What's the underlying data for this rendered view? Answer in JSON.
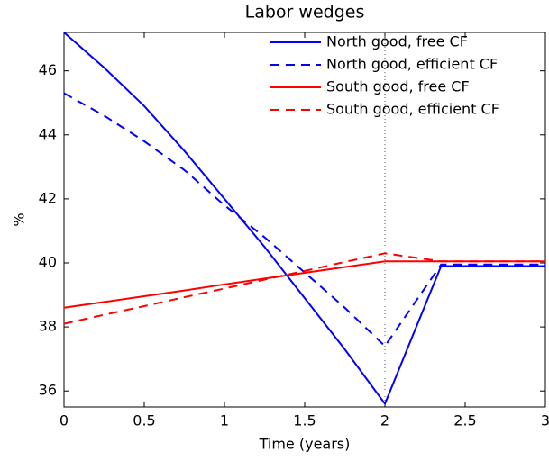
{
  "chart_data": {
    "type": "line",
    "title": "Labor wedges",
    "xlabel": "Time (years)",
    "ylabel": "%",
    "x": [
      0,
      0.25,
      0.5,
      0.75,
      1,
      1.25,
      1.5,
      1.75,
      2,
      2.35,
      2.5,
      3
    ],
    "series": [
      {
        "name": "North good, free CF",
        "color": "#0000ff",
        "dash": false,
        "values": [
          47.2,
          46.1,
          44.9,
          43.5,
          42.0,
          40.5,
          38.9,
          37.3,
          35.6,
          39.9,
          39.9,
          39.9
        ]
      },
      {
        "name": "North good, efficient CF",
        "color": "#0000ff",
        "dash": true,
        "values": [
          45.3,
          44.6,
          43.8,
          42.9,
          41.8,
          40.8,
          39.7,
          38.6,
          37.4,
          39.95,
          39.95,
          39.95
        ]
      },
      {
        "name": "South good, free CF",
        "color": "#ff0000",
        "dash": false,
        "values": [
          38.6,
          38.78,
          38.96,
          39.14,
          39.33,
          39.51,
          39.69,
          39.87,
          40.05,
          40.05,
          40.05,
          40.05
        ]
      },
      {
        "name": "South good, efficient CF",
        "color": "#ff0000",
        "dash": true,
        "values": [
          38.1,
          38.38,
          38.65,
          38.93,
          39.2,
          39.48,
          39.75,
          40.03,
          40.3,
          40.05,
          40.05,
          40.05
        ]
      }
    ],
    "xlim": [
      0,
      3
    ],
    "xticks": [
      0,
      0.5,
      1,
      1.5,
      2,
      2.5,
      3
    ],
    "ylim": [
      35.5,
      47.2
    ],
    "yticks": [
      36,
      38,
      40,
      42,
      44,
      46
    ],
    "vline": 2,
    "legend": "upper-right",
    "grid": false
  }
}
